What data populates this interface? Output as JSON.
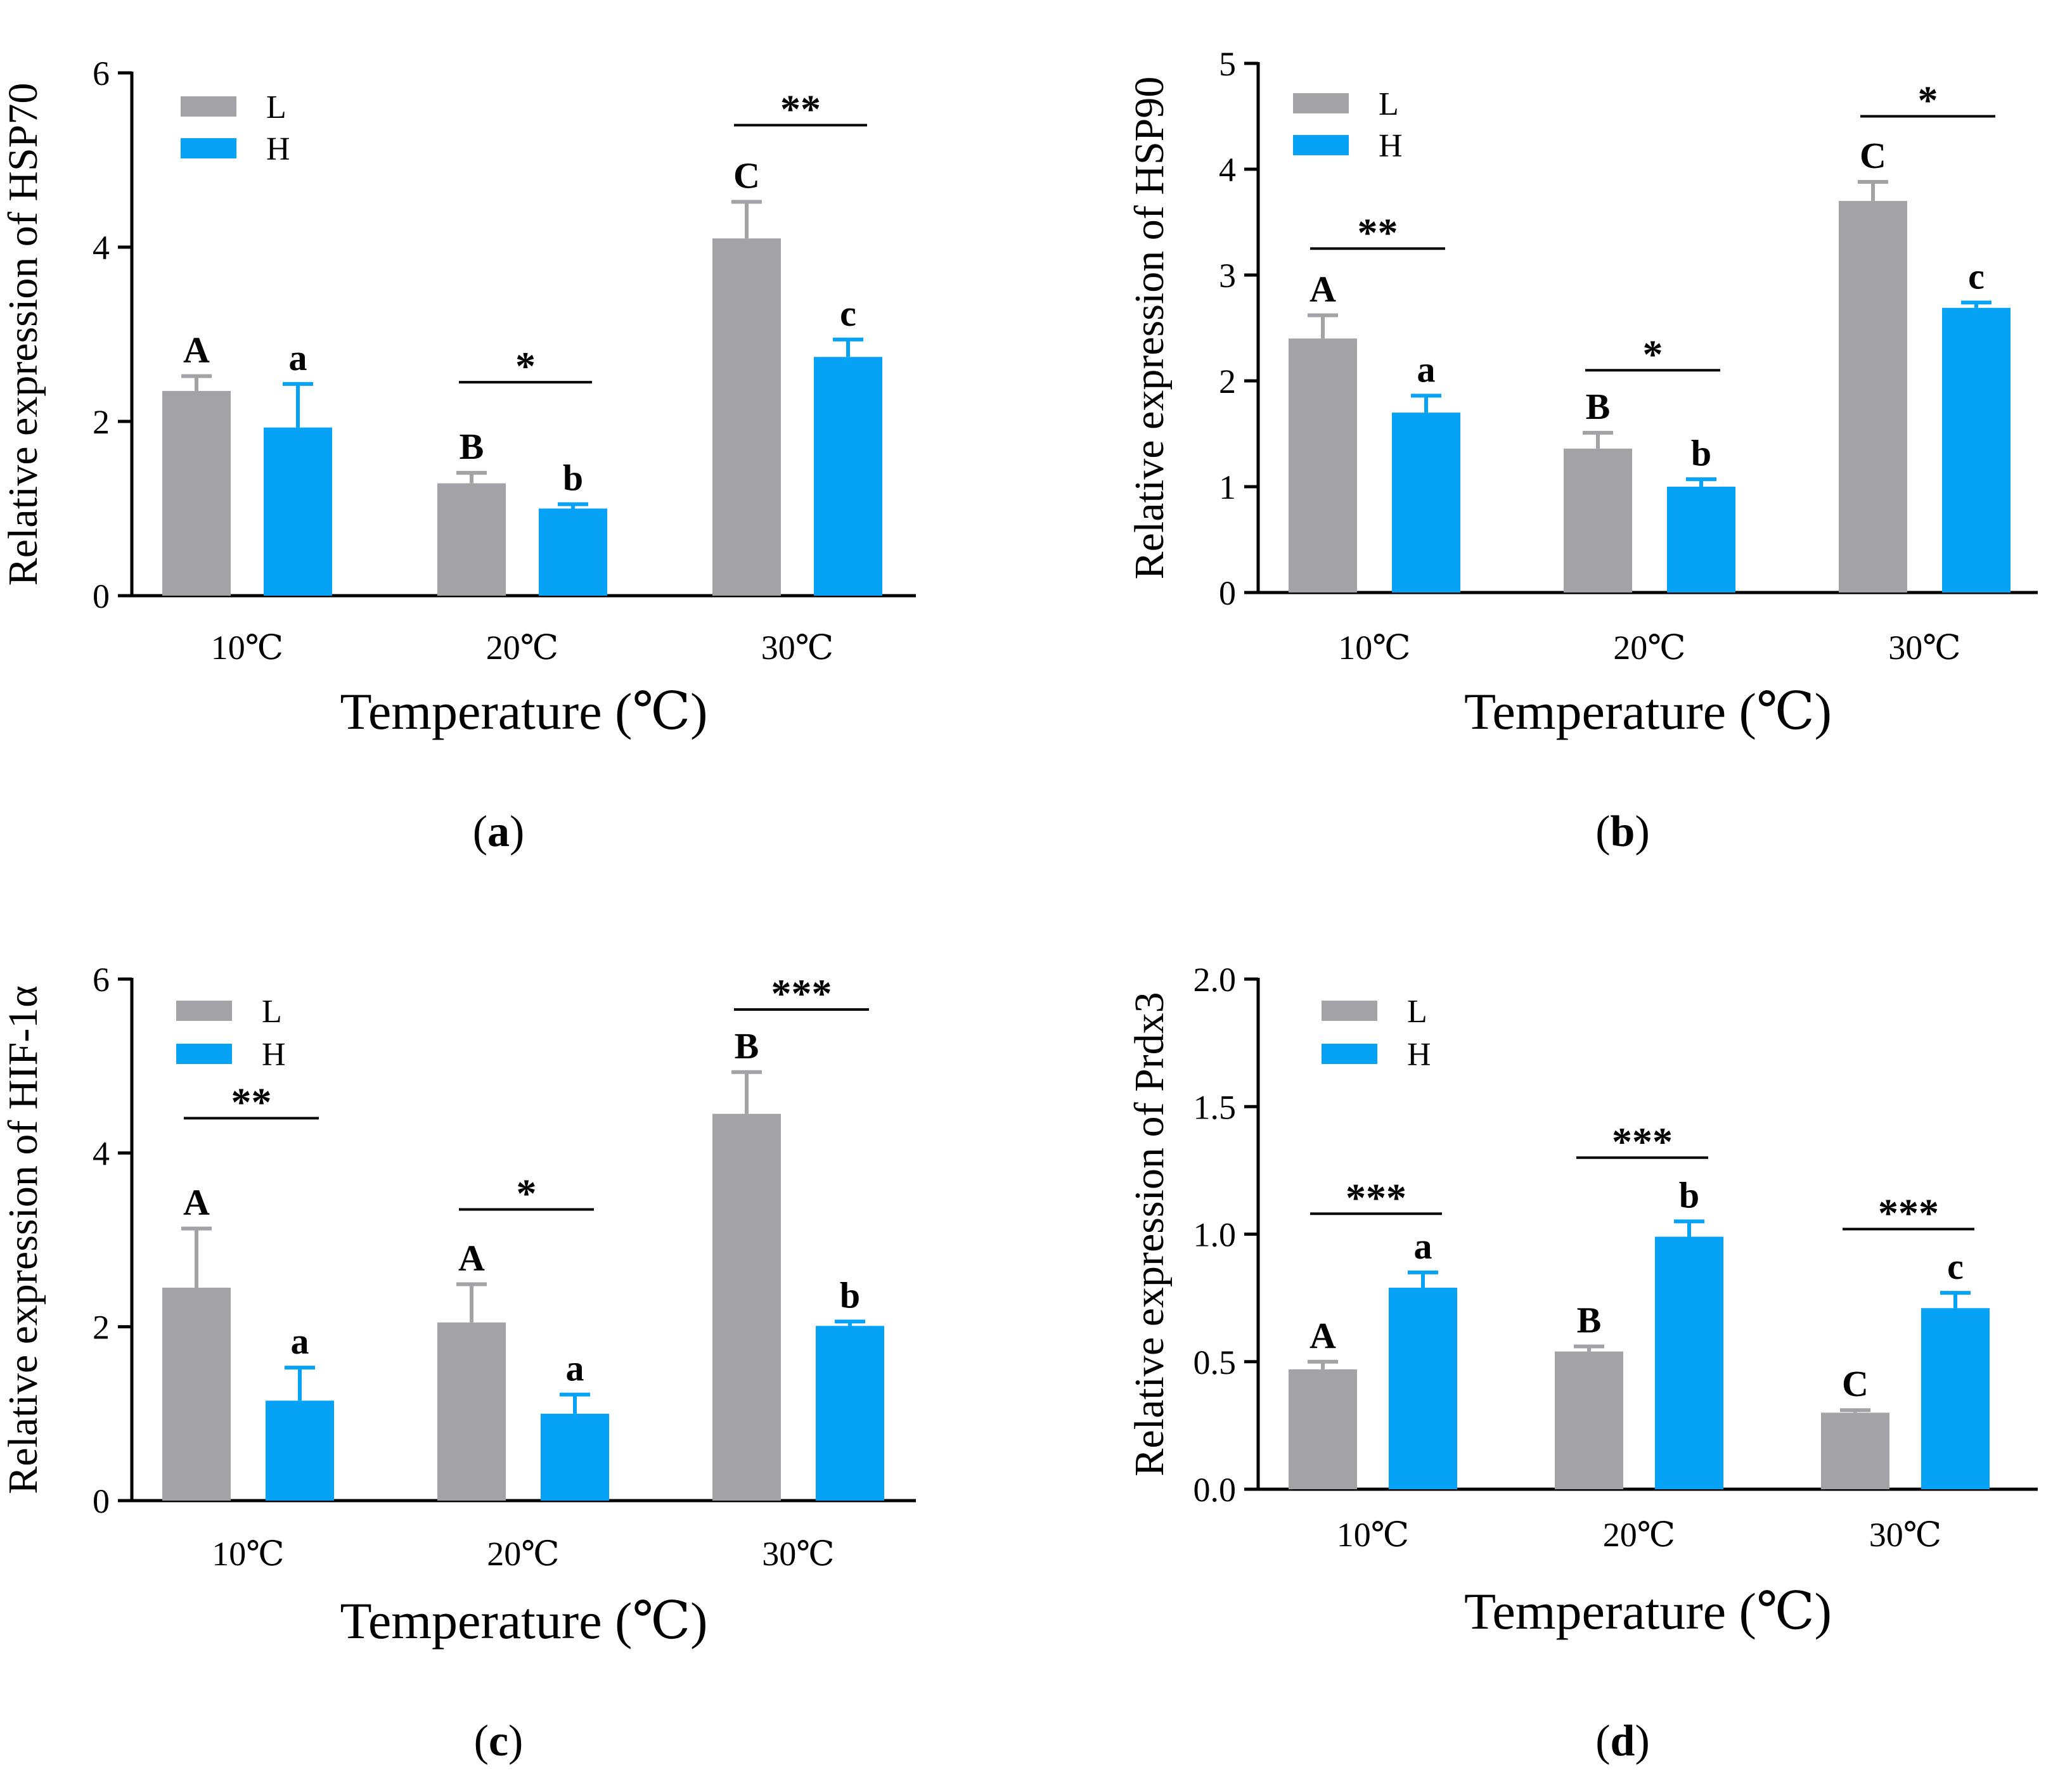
{
  "colors": {
    "L": "#a2a2a7",
    "H": "#06a2f5",
    "axis": "#000000"
  },
  "chart_data": [
    {
      "type": "bar",
      "panel_label": "a",
      "ylabel": "Relative expression of  HSP70",
      "xlabel": "Temperature (℃)",
      "categories": [
        "10℃",
        "20℃",
        "30℃"
      ],
      "yticks": [
        0,
        2,
        4,
        6
      ],
      "ylim": [
        0,
        6
      ],
      "legend": [
        "L",
        "H"
      ],
      "series": [
        {
          "name": "L",
          "values": [
            2.35,
            1.29,
            4.1
          ],
          "errors": [
            0.17,
            0.12,
            0.42
          ],
          "letters": [
            "A",
            "B",
            "C"
          ]
        },
        {
          "name": "H",
          "values": [
            1.93,
            1.0,
            2.74
          ],
          "errors": [
            0.5,
            0.05,
            0.2
          ],
          "letters": [
            "a",
            "b",
            "c"
          ]
        }
      ],
      "significance": [
        "",
        "*",
        "**"
      ]
    },
    {
      "type": "bar",
      "panel_label": "b",
      "ylabel": "Relative expression of  HSP90",
      "xlabel": "Temperature (℃)",
      "categories": [
        "10℃",
        "20℃",
        "30℃"
      ],
      "yticks": [
        0,
        1,
        2,
        3,
        4,
        5
      ],
      "ylim": [
        0,
        5
      ],
      "legend": [
        "L",
        "H"
      ],
      "series": [
        {
          "name": "L",
          "values": [
            2.4,
            1.36,
            3.7
          ],
          "errors": [
            0.22,
            0.15,
            0.18
          ],
          "letters": [
            "A",
            "B",
            "C"
          ]
        },
        {
          "name": "H",
          "values": [
            1.7,
            1.0,
            2.69
          ],
          "errors": [
            0.16,
            0.07,
            0.05
          ],
          "letters": [
            "a",
            "b",
            "c"
          ]
        }
      ],
      "significance": [
        "**",
        "*",
        "*"
      ]
    },
    {
      "type": "bar",
      "panel_label": "c",
      "ylabel": "Relative expression of  HIF-1α",
      "xlabel": "Temperature (℃)",
      "categories": [
        "10℃",
        "20℃",
        "30℃"
      ],
      "yticks": [
        0,
        2,
        4,
        6
      ],
      "ylim": [
        0,
        6
      ],
      "legend": [
        "L",
        "H"
      ],
      "series": [
        {
          "name": "L",
          "values": [
            2.45,
            2.05,
            4.45
          ],
          "errors": [
            0.68,
            0.44,
            0.48
          ],
          "letters": [
            "A",
            "A",
            "B"
          ]
        },
        {
          "name": "H",
          "values": [
            1.15,
            1.0,
            2.01
          ],
          "errors": [
            0.38,
            0.22,
            0.05
          ],
          "letters": [
            "a",
            "a",
            "b"
          ]
        }
      ],
      "significance": [
        "**",
        "*",
        "***"
      ]
    },
    {
      "type": "bar",
      "panel_label": "d",
      "ylabel": "Relative expression of  Prdx3",
      "xlabel": "Temperature (℃)",
      "categories": [
        "10℃",
        "20℃",
        "30℃"
      ],
      "yticks": [
        "0.0",
        "0.5",
        "1.0",
        "1.5",
        "2.0"
      ],
      "ylim": [
        0,
        2
      ],
      "legend": [
        "L",
        "H"
      ],
      "series": [
        {
          "name": "L",
          "values": [
            0.47,
            0.54,
            0.3
          ],
          "errors": [
            0.03,
            0.02,
            0.01
          ],
          "letters": [
            "A",
            "B",
            "C"
          ]
        },
        {
          "name": "H",
          "values": [
            0.79,
            0.99,
            0.71
          ],
          "errors": [
            0.06,
            0.06,
            0.06
          ],
          "letters": [
            "a",
            "b",
            "c"
          ]
        }
      ],
      "significance": [
        "***",
        "***",
        "***"
      ]
    }
  ]
}
